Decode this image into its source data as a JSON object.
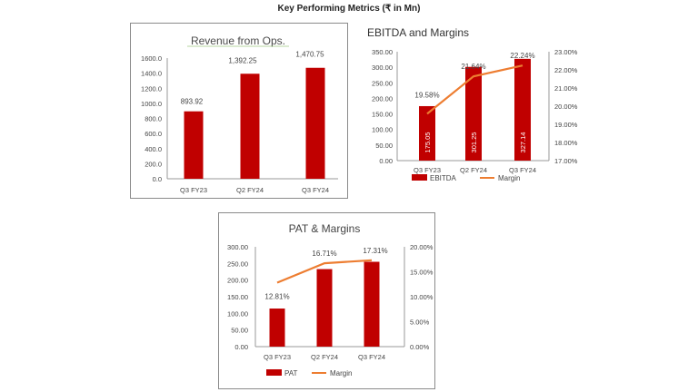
{
  "title": "Key Performing Metrics (₹ in Mn)",
  "chart_data": [
    {
      "type": "bar",
      "title": "Revenue from Ops.",
      "categories": [
        "Q3 FY23",
        "Q2 FY24",
        "Q3 FY24"
      ],
      "series": [
        {
          "values": [
            893.92,
            1392.25,
            1470.75
          ],
          "data_labels": [
            "893.92",
            "1,392.25",
            "1,470.75"
          ]
        }
      ],
      "ylim": [
        0,
        1600
      ],
      "yticks": [
        "0.0",
        "200.0",
        "400.0",
        "600.0",
        "800.0",
        "1000.0",
        "1200.0",
        "1400.0",
        "1600.0"
      ],
      "bar_color": "#c00000",
      "grid": false
    },
    {
      "type": "bar+line",
      "title": "EBITDA  and  Margins",
      "categories": [
        "Q3 FY23",
        "Q2 FY24",
        "Q3 FY24"
      ],
      "series": [
        {
          "name": "EBITDA",
          "type": "bar",
          "axis": "left",
          "values": [
            175.05,
            301.25,
            327.14
          ],
          "data_labels": [
            "175.05",
            "301.25",
            "327.14"
          ],
          "color": "#c00000"
        },
        {
          "name": "Margin",
          "type": "line",
          "axis": "right",
          "values": [
            19.58,
            21.64,
            22.24
          ],
          "data_labels": [
            "19.58%",
            "21.64%",
            "22.24%"
          ],
          "color": "#ed7d31"
        }
      ],
      "ylim": [
        0,
        350
      ],
      "yticks": [
        "0.00",
        "50.00",
        "100.00",
        "150.00",
        "200.00",
        "250.00",
        "300.00",
        "350.00"
      ],
      "y2lim": [
        17,
        23
      ],
      "y2ticks": [
        "17.00%",
        "18.00%",
        "19.00%",
        "20.00%",
        "21.00%",
        "22.00%",
        "23.00%"
      ],
      "legend": "bottom",
      "grid": false
    },
    {
      "type": "bar+line",
      "title": "PAT & Margins",
      "categories": [
        "Q3 FY23",
        "Q2 FY24",
        "Q3 FY24"
      ],
      "series": [
        {
          "name": "PAT",
          "type": "bar",
          "axis": "left",
          "values": [
            114.5,
            233.0,
            255.0
          ],
          "color": "#c00000"
        },
        {
          "name": "Margin",
          "type": "line",
          "axis": "right",
          "values": [
            12.81,
            16.71,
            17.31
          ],
          "data_labels": [
            "12.81%",
            "16.71%",
            "17.31%"
          ],
          "color": "#ed7d31"
        }
      ],
      "ylim": [
        0,
        300
      ],
      "yticks": [
        "0.00",
        "50.00",
        "100.00",
        "150.00",
        "200.00",
        "250.00",
        "300.00"
      ],
      "y2lim": [
        0,
        20
      ],
      "y2ticks": [
        "0.00%",
        "5.00%",
        "10.00%",
        "15.00%",
        "20.00%"
      ],
      "legend": "bottom",
      "grid": false
    }
  ]
}
